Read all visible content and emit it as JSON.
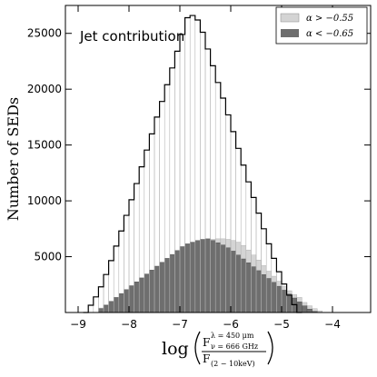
{
  "chart_data": {
    "type": "histogram",
    "annotation": "Jet contribution",
    "ylabel": "Number of SEDs",
    "xlabel": {
      "prefix": "log",
      "numerator_main": "F",
      "numerator_sup": "λ = 450 μm",
      "numerator_sub": "ν = 666 GHz",
      "denominator_main": "F",
      "denominator_sub": "(2 − 10keV)"
    },
    "xlim": [
      -9.25,
      -3.25
    ],
    "ylim": [
      0,
      27500
    ],
    "xticks": [
      -9,
      -8,
      -7,
      -6,
      -5,
      -4
    ],
    "xtick_labels": [
      "−9",
      "−8",
      "−7",
      "−6",
      "−5",
      "−4"
    ],
    "yticks": [
      5000,
      10000,
      15000,
      20000,
      25000
    ],
    "ytick_labels": [
      "5000",
      "10000",
      "15000",
      "20000",
      "25000"
    ],
    "bin_width": 0.1,
    "legend": {
      "position": "top-right",
      "entries": [
        {
          "label": "α > −0.55",
          "color": "#d4d4d4"
        },
        {
          "label": "α < −0.65",
          "color": "#6e6e6e"
        }
      ]
    },
    "series": [
      {
        "name": "total",
        "style": "step-outline",
        "color": "#000000",
        "x_start": -8.9,
        "values": [
          0,
          650,
          1400,
          2300,
          3400,
          4650,
          5950,
          7300,
          8700,
          10100,
          11550,
          13050,
          14550,
          16000,
          17500,
          18900,
          20400,
          21900,
          23400,
          24900,
          26400,
          26600,
          26200,
          25100,
          23600,
          22100,
          20600,
          19200,
          17700,
          16200,
          14700,
          13200,
          11700,
          10300,
          8900,
          7500,
          6150,
          4850,
          3650,
          2550,
          1550,
          700,
          0
        ]
      },
      {
        "name": "α > −0.55",
        "style": "filled",
        "color": "#d4d4d4",
        "x_start": -8.6,
        "values": [
          400,
          700,
          1000,
          1300,
          1600,
          1900,
          2200,
          2500,
          2800,
          3100,
          3400,
          3700,
          4000,
          4300,
          4600,
          4900,
          5200,
          5500,
          5800,
          6100,
          6300,
          6450,
          6550,
          6600,
          6600,
          6550,
          6450,
          6300,
          6000,
          5600,
          5150,
          4700,
          4200,
          3700,
          3250,
          2800,
          2350,
          1950,
          1600,
          1350,
          900,
          600,
          350,
          150
        ]
      },
      {
        "name": "α < −0.65",
        "style": "filled",
        "color": "#6e6e6e",
        "x_start": -8.6,
        "values": [
          350,
          650,
          1000,
          1350,
          1700,
          2050,
          2400,
          2750,
          3100,
          3450,
          3800,
          4150,
          4500,
          4850,
          5200,
          5550,
          5900,
          6150,
          6300,
          6450,
          6550,
          6600,
          6450,
          6250,
          6050,
          5800,
          5500,
          5150,
          4800,
          4450,
          4100,
          3750,
          3400,
          3050,
          2700,
          2350,
          2000,
          1650,
          1300,
          950,
          600,
          300,
          100,
          0
        ]
      }
    ]
  }
}
